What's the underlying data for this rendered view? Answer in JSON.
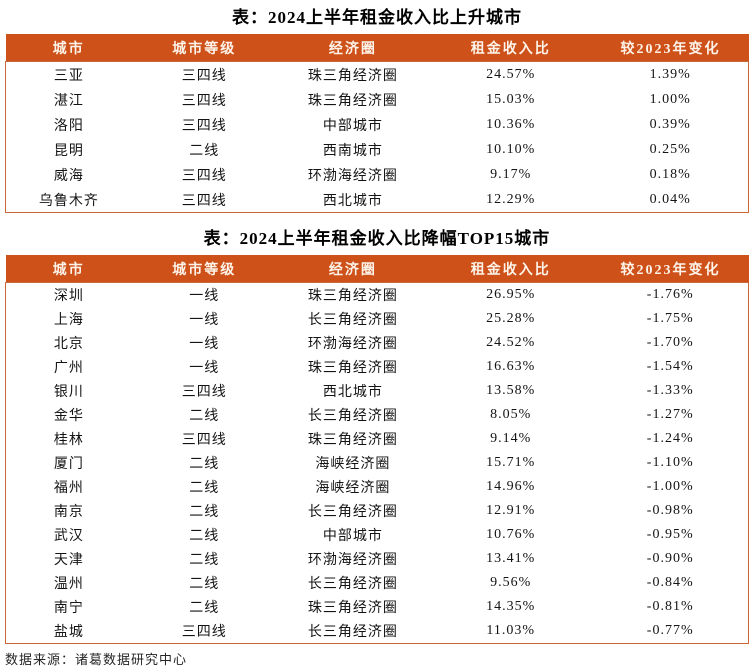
{
  "colors": {
    "header_bg": "#CE511A",
    "header_text": "#FDF3E8",
    "table_border": "#C8693B"
  },
  "source_note": "数据来源：诸葛数据研究中心",
  "tables": [
    {
      "title": "表：2024上半年租金收入比上升城市",
      "columns": [
        "城市",
        "城市等级",
        "经济圈",
        "租金收入比",
        "较2023年变化"
      ],
      "rows": [
        [
          "三亚",
          "三四线",
          "珠三角经济圈",
          "24.57%",
          "1.39%"
        ],
        [
          "湛江",
          "三四线",
          "珠三角经济圈",
          "15.03%",
          "1.00%"
        ],
        [
          "洛阳",
          "三四线",
          "中部城市",
          "10.36%",
          "0.39%"
        ],
        [
          "昆明",
          "二线",
          "西南城市",
          "10.10%",
          "0.25%"
        ],
        [
          "威海",
          "三四线",
          "环渤海经济圈",
          "9.17%",
          "0.18%"
        ],
        [
          "乌鲁木齐",
          "三四线",
          "西北城市",
          "12.29%",
          "0.04%"
        ]
      ]
    },
    {
      "title": "表：2024上半年租金收入比降幅TOP15城市",
      "columns": [
        "城市",
        "城市等级",
        "经济圈",
        "租金收入比",
        "较2023年变化"
      ],
      "rows": [
        [
          "深圳",
          "一线",
          "珠三角经济圈",
          "26.95%",
          "-1.76%"
        ],
        [
          "上海",
          "一线",
          "长三角经济圈",
          "25.28%",
          "-1.75%"
        ],
        [
          "北京",
          "一线",
          "环渤海经济圈",
          "24.52%",
          "-1.70%"
        ],
        [
          "广州",
          "一线",
          "珠三角经济圈",
          "16.63%",
          "-1.54%"
        ],
        [
          "银川",
          "三四线",
          "西北城市",
          "13.58%",
          "-1.33%"
        ],
        [
          "金华",
          "二线",
          "长三角经济圈",
          "8.05%",
          "-1.27%"
        ],
        [
          "桂林",
          "三四线",
          "珠三角经济圈",
          "9.14%",
          "-1.24%"
        ],
        [
          "厦门",
          "二线",
          "海峡经济圈",
          "15.71%",
          "-1.10%"
        ],
        [
          "福州",
          "二线",
          "海峡经济圈",
          "14.96%",
          "-1.00%"
        ],
        [
          "南京",
          "二线",
          "长三角经济圈",
          "12.91%",
          "-0.98%"
        ],
        [
          "武汉",
          "二线",
          "中部城市",
          "10.76%",
          "-0.95%"
        ],
        [
          "天津",
          "二线",
          "环渤海经济圈",
          "13.41%",
          "-0.90%"
        ],
        [
          "温州",
          "二线",
          "长三角经济圈",
          "9.56%",
          "-0.84%"
        ],
        [
          "南宁",
          "二线",
          "珠三角经济圈",
          "14.35%",
          "-0.81%"
        ],
        [
          "盐城",
          "三四线",
          "长三角经济圈",
          "11.03%",
          "-0.77%"
        ]
      ]
    }
  ]
}
